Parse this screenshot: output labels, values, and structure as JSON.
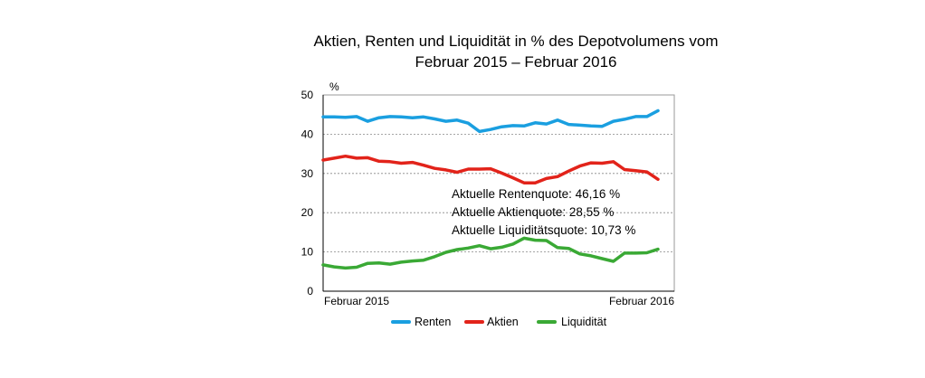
{
  "chart_data": {
    "type": "line",
    "title": [
      "Aktien, Renten und Liquidität in % des Depotvolumens vom",
      "Februar 2015 – Februar 2016"
    ],
    "ylabel": "%",
    "ylim": [
      0,
      50
    ],
    "yticks": [
      0,
      10,
      20,
      30,
      40,
      50
    ],
    "x_labels": [
      "Februar 2015",
      "Februar 2016"
    ],
    "grid": true,
    "legend_placement": "bottom",
    "series": [
      {
        "name": "Renten",
        "color": "#1a9fe0",
        "values": [
          44.4,
          44.4,
          44.3,
          44.5,
          43.3,
          44.2,
          44.5,
          44.4,
          44.2,
          44.4,
          43.9,
          43.3,
          43.6,
          42.8,
          40.7,
          41.2,
          41.9,
          42.2,
          42.1,
          42.9,
          42.6,
          43.6,
          42.5,
          42.3,
          42.1,
          42.0,
          43.3,
          43.8,
          44.5,
          44.5,
          46.0
        ]
      },
      {
        "name": "Aktien",
        "color": "#e2231a",
        "values": [
          33.4,
          33.9,
          34.4,
          33.9,
          34.0,
          33.1,
          33.0,
          32.6,
          32.8,
          32.1,
          31.3,
          30.9,
          30.3,
          31.1,
          31.1,
          31.2,
          30.1,
          28.9,
          27.6,
          27.6,
          28.7,
          29.2,
          30.6,
          31.9,
          32.7,
          32.6,
          33.0,
          31.0,
          30.7,
          30.4,
          28.5
        ]
      },
      {
        "name": "Liquidität",
        "color": "#3aa935",
        "values": [
          6.7,
          6.2,
          5.9,
          6.1,
          7.1,
          7.2,
          6.9,
          7.4,
          7.7,
          7.9,
          8.8,
          9.9,
          10.6,
          11.0,
          11.6,
          10.8,
          11.2,
          12.0,
          13.5,
          13.0,
          12.9,
          11.1,
          10.9,
          9.5,
          9.0,
          8.3,
          7.6,
          9.7,
          9.7,
          9.8,
          10.7
        ]
      }
    ],
    "annotations": [
      "Aktuelle Rentenquote: 46,16 %",
      "Aktuelle Aktienquote: 28,55 %",
      "Aktuelle Liquiditätsquote: 10,73 %"
    ]
  }
}
